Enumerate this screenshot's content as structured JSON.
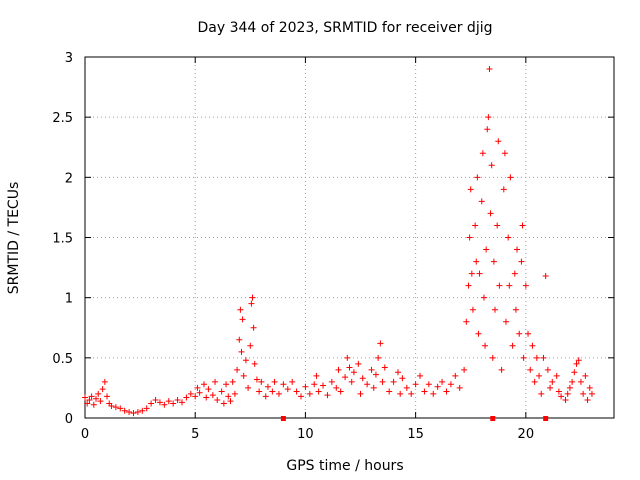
{
  "chart_data": {
    "type": "scatter",
    "title": "Day 344 of 2023, SRMTID for receiver djig",
    "xlabel": "GPS time / hours",
    "ylabel": "SRMTID / TECUs",
    "xlim": [
      0,
      24
    ],
    "ylim": [
      0,
      3
    ],
    "xticks": [
      0,
      5,
      10,
      15,
      20
    ],
    "yticks": [
      0,
      0.5,
      1,
      1.5,
      2,
      2.5,
      3
    ],
    "xtick_labels": [
      "0",
      "5",
      "10",
      "15",
      "20"
    ],
    "ytick_labels": [
      "0",
      "0.5",
      "1",
      "1.5",
      "2",
      "2.5",
      "3"
    ],
    "grid": true,
    "marker": "+",
    "color": "#ff0000",
    "x_axis_markers": [
      9.0,
      18.5,
      20.9
    ],
    "series": [
      {
        "name": "SRMTID",
        "points": [
          [
            0.0,
            0.17
          ],
          [
            0.1,
            0.12
          ],
          [
            0.2,
            0.15
          ],
          [
            0.3,
            0.18
          ],
          [
            0.4,
            0.11
          ],
          [
            0.5,
            0.16
          ],
          [
            0.6,
            0.2
          ],
          [
            0.7,
            0.14
          ],
          [
            0.8,
            0.24
          ],
          [
            0.9,
            0.3
          ],
          [
            1.0,
            0.18
          ],
          [
            1.1,
            0.12
          ],
          [
            1.2,
            0.1
          ],
          [
            1.4,
            0.09
          ],
          [
            1.6,
            0.08
          ],
          [
            1.8,
            0.06
          ],
          [
            2.0,
            0.05
          ],
          [
            2.2,
            0.04
          ],
          [
            2.4,
            0.05
          ],
          [
            2.6,
            0.06
          ],
          [
            2.8,
            0.08
          ],
          [
            3.0,
            0.12
          ],
          [
            3.2,
            0.15
          ],
          [
            3.4,
            0.13
          ],
          [
            3.6,
            0.11
          ],
          [
            3.8,
            0.14
          ],
          [
            4.0,
            0.12
          ],
          [
            4.2,
            0.15
          ],
          [
            4.4,
            0.13
          ],
          [
            4.6,
            0.17
          ],
          [
            4.8,
            0.2
          ],
          [
            5.0,
            0.18
          ],
          [
            5.1,
            0.25
          ],
          [
            5.2,
            0.21
          ],
          [
            5.4,
            0.28
          ],
          [
            5.5,
            0.17
          ],
          [
            5.6,
            0.24
          ],
          [
            5.8,
            0.19
          ],
          [
            5.9,
            0.3
          ],
          [
            6.0,
            0.15
          ],
          [
            6.2,
            0.22
          ],
          [
            6.3,
            0.12
          ],
          [
            6.4,
            0.28
          ],
          [
            6.5,
            0.18
          ],
          [
            6.6,
            0.14
          ],
          [
            6.7,
            0.3
          ],
          [
            6.8,
            0.2
          ],
          [
            6.9,
            0.4
          ],
          [
            7.0,
            0.65
          ],
          [
            7.05,
            0.9
          ],
          [
            7.1,
            0.55
          ],
          [
            7.15,
            0.82
          ],
          [
            7.2,
            0.35
          ],
          [
            7.3,
            0.48
          ],
          [
            7.4,
            0.25
          ],
          [
            7.5,
            0.6
          ],
          [
            7.55,
            0.95
          ],
          [
            7.6,
            1.0
          ],
          [
            7.65,
            0.75
          ],
          [
            7.7,
            0.45
          ],
          [
            7.8,
            0.32
          ],
          [
            7.9,
            0.22
          ],
          [
            8.0,
            0.3
          ],
          [
            8.2,
            0.18
          ],
          [
            8.3,
            0.26
          ],
          [
            8.5,
            0.22
          ],
          [
            8.6,
            0.3
          ],
          [
            8.8,
            0.2
          ],
          [
            9.0,
            0.28
          ],
          [
            9.2,
            0.24
          ],
          [
            9.4,
            0.3
          ],
          [
            9.6,
            0.22
          ],
          [
            9.8,
            0.18
          ],
          [
            10.0,
            0.26
          ],
          [
            10.2,
            0.2
          ],
          [
            10.4,
            0.28
          ],
          [
            10.5,
            0.35
          ],
          [
            10.6,
            0.22
          ],
          [
            10.8,
            0.27
          ],
          [
            11.0,
            0.19
          ],
          [
            11.2,
            0.3
          ],
          [
            11.4,
            0.25
          ],
          [
            11.5,
            0.4
          ],
          [
            11.6,
            0.22
          ],
          [
            11.8,
            0.34
          ],
          [
            11.9,
            0.5
          ],
          [
            12.0,
            0.42
          ],
          [
            12.1,
            0.3
          ],
          [
            12.2,
            0.38
          ],
          [
            12.4,
            0.45
          ],
          [
            12.5,
            0.2
          ],
          [
            12.6,
            0.33
          ],
          [
            12.8,
            0.28
          ],
          [
            13.0,
            0.4
          ],
          [
            13.1,
            0.25
          ],
          [
            13.2,
            0.36
          ],
          [
            13.3,
            0.5
          ],
          [
            13.4,
            0.62
          ],
          [
            13.5,
            0.3
          ],
          [
            13.6,
            0.42
          ],
          [
            13.8,
            0.22
          ],
          [
            14.0,
            0.3
          ],
          [
            14.2,
            0.38
          ],
          [
            14.3,
            0.2
          ],
          [
            14.4,
            0.33
          ],
          [
            14.6,
            0.25
          ],
          [
            14.8,
            0.2
          ],
          [
            15.0,
            0.28
          ],
          [
            15.2,
            0.35
          ],
          [
            15.4,
            0.22
          ],
          [
            15.6,
            0.28
          ],
          [
            15.8,
            0.2
          ],
          [
            16.0,
            0.26
          ],
          [
            16.2,
            0.3
          ],
          [
            16.4,
            0.22
          ],
          [
            16.6,
            0.28
          ],
          [
            16.8,
            0.35
          ],
          [
            17.0,
            0.25
          ],
          [
            17.2,
            0.4
          ],
          [
            17.3,
            0.8
          ],
          [
            17.4,
            1.1
          ],
          [
            17.45,
            1.5
          ],
          [
            17.5,
            1.9
          ],
          [
            17.55,
            1.2
          ],
          [
            17.6,
            0.9
          ],
          [
            17.7,
            1.6
          ],
          [
            17.75,
            1.3
          ],
          [
            17.8,
            2.0
          ],
          [
            17.85,
            0.7
          ],
          [
            17.9,
            1.2
          ],
          [
            18.0,
            1.8
          ],
          [
            18.05,
            2.2
          ],
          [
            18.1,
            1.0
          ],
          [
            18.15,
            0.6
          ],
          [
            18.2,
            1.4
          ],
          [
            18.25,
            2.4
          ],
          [
            18.3,
            2.5
          ],
          [
            18.35,
            2.9
          ],
          [
            18.4,
            1.7
          ],
          [
            18.45,
            2.1
          ],
          [
            18.5,
            0.5
          ],
          [
            18.55,
            1.3
          ],
          [
            18.6,
            0.9
          ],
          [
            18.7,
            1.6
          ],
          [
            18.75,
            2.3
          ],
          [
            18.8,
            1.1
          ],
          [
            18.9,
            0.4
          ],
          [
            19.0,
            1.9
          ],
          [
            19.05,
            2.2
          ],
          [
            19.1,
            0.8
          ],
          [
            19.2,
            1.5
          ],
          [
            19.25,
            1.1
          ],
          [
            19.3,
            2.0
          ],
          [
            19.4,
            0.6
          ],
          [
            19.5,
            1.2
          ],
          [
            19.55,
            0.9
          ],
          [
            19.6,
            1.4
          ],
          [
            19.7,
            0.7
          ],
          [
            19.8,
            1.3
          ],
          [
            19.85,
            1.6
          ],
          [
            19.9,
            0.5
          ],
          [
            20.0,
            1.1
          ],
          [
            20.1,
            0.7
          ],
          [
            20.2,
            0.4
          ],
          [
            20.3,
            0.6
          ],
          [
            20.4,
            0.3
          ],
          [
            20.5,
            0.5
          ],
          [
            20.6,
            0.35
          ],
          [
            20.7,
            0.2
          ],
          [
            20.8,
            0.5
          ],
          [
            20.9,
            1.18
          ],
          [
            21.0,
            0.4
          ],
          [
            21.1,
            0.25
          ],
          [
            21.2,
            0.3
          ],
          [
            21.4,
            0.35
          ],
          [
            21.5,
            0.22
          ],
          [
            21.6,
            0.18
          ],
          [
            21.8,
            0.15
          ],
          [
            21.9,
            0.2
          ],
          [
            22.0,
            0.25
          ],
          [
            22.1,
            0.3
          ],
          [
            22.2,
            0.38
          ],
          [
            22.3,
            0.45
          ],
          [
            22.4,
            0.48
          ],
          [
            22.5,
            0.3
          ],
          [
            22.6,
            0.2
          ],
          [
            22.7,
            0.35
          ],
          [
            22.8,
            0.15
          ],
          [
            22.9,
            0.25
          ],
          [
            23.0,
            0.2
          ]
        ]
      }
    ]
  }
}
